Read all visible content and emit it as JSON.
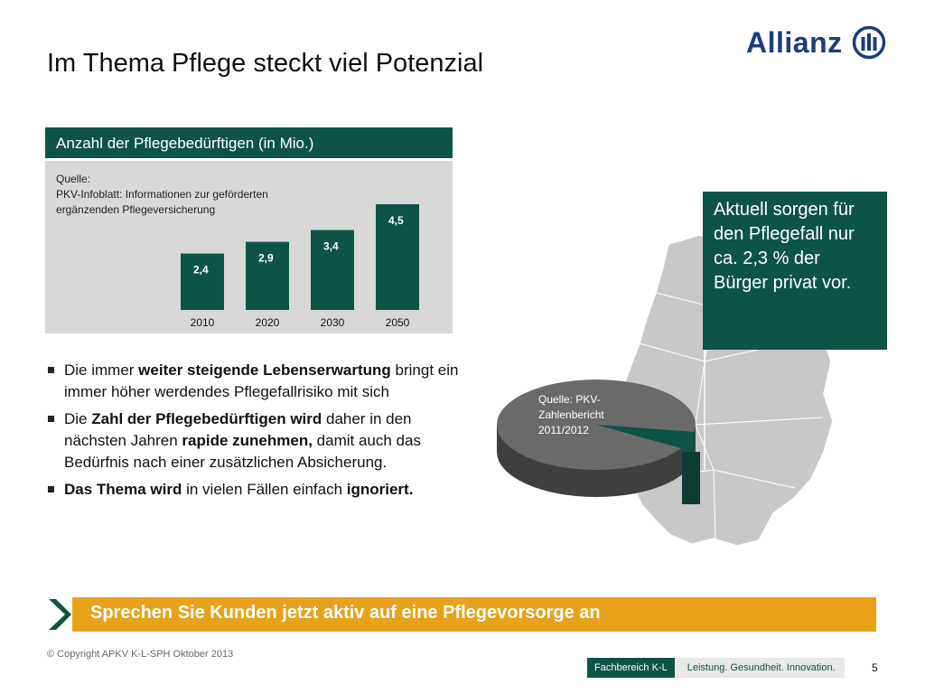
{
  "slide": {
    "title": "Im Thema Pflege steckt viel Potenzial",
    "logo_text": "Allianz",
    "page_number": "5"
  },
  "chart": {
    "header": "Anzahl der Pflegebedürftigen (in Mio.)",
    "source_lines": [
      "Quelle:",
      "PKV-Infoblatt: Informationen zur geförderten",
      "ergänzenden Pflegeversicherung"
    ]
  },
  "chart_data": {
    "type": "bar",
    "title": "Anzahl der Pflegebedürftigen (in Mio.)",
    "categories": [
      "2010",
      "2020",
      "2030",
      "2050"
    ],
    "values": [
      2.4,
      2.9,
      3.4,
      4.5
    ],
    "value_labels": [
      "2,4",
      "2,9",
      "3,4",
      "4,5"
    ],
    "ylim": [
      0,
      5
    ],
    "grid": false,
    "colors": {
      "bar": "#0e5446",
      "background": "#d8d8d8"
    }
  },
  "bullets": [
    {
      "parts": [
        {
          "text": "Die immer ",
          "bold": false
        },
        {
          "text": "weiter steigende Lebenserwartung",
          "bold": true
        },
        {
          "text": " bringt ein immer höher werdendes Pflegefallrisiko mit sich",
          "bold": false
        }
      ]
    },
    {
      "parts": [
        {
          "text": "Die ",
          "bold": false
        },
        {
          "text": "Zahl der Pflegebedürftigen wird",
          "bold": true
        },
        {
          "text": " daher in den nächsten Jahren ",
          "bold": false
        },
        {
          "text": "rapide zunehmen,",
          "bold": true
        },
        {
          "text": " damit auch das Bedürfnis nach einer zusätzlichen Absicherung.",
          "bold": false
        }
      ]
    },
    {
      "parts": [
        {
          "text": "Das Thema wird",
          "bold": true
        },
        {
          "text": " in vielen Fällen einfach ",
          "bold": false
        },
        {
          "text": "ignoriert.",
          "bold": true
        }
      ]
    }
  ],
  "callout": {
    "text": "Aktuell sorgen für den Pflegefall nur ca. 2,3 % der Bürger privat vor."
  },
  "pie": {
    "source": "Quelle: PKV-Zahlenbericht 2011/2012",
    "private_share_percent": 2.3
  },
  "banner": {
    "text": "Sprechen Sie Kunden jetzt aktiv auf eine Pflegevorsorge an"
  },
  "footer": {
    "copyright": "© Copyright APKV K-L-SPH Oktober 2013",
    "department": "Fachbereich K-L",
    "claim": "Leistung. Gesundheit. Innovation."
  },
  "colors": {
    "primary": "#0e5446",
    "accent": "#e8a21a",
    "logo": "#1a3d7c"
  }
}
